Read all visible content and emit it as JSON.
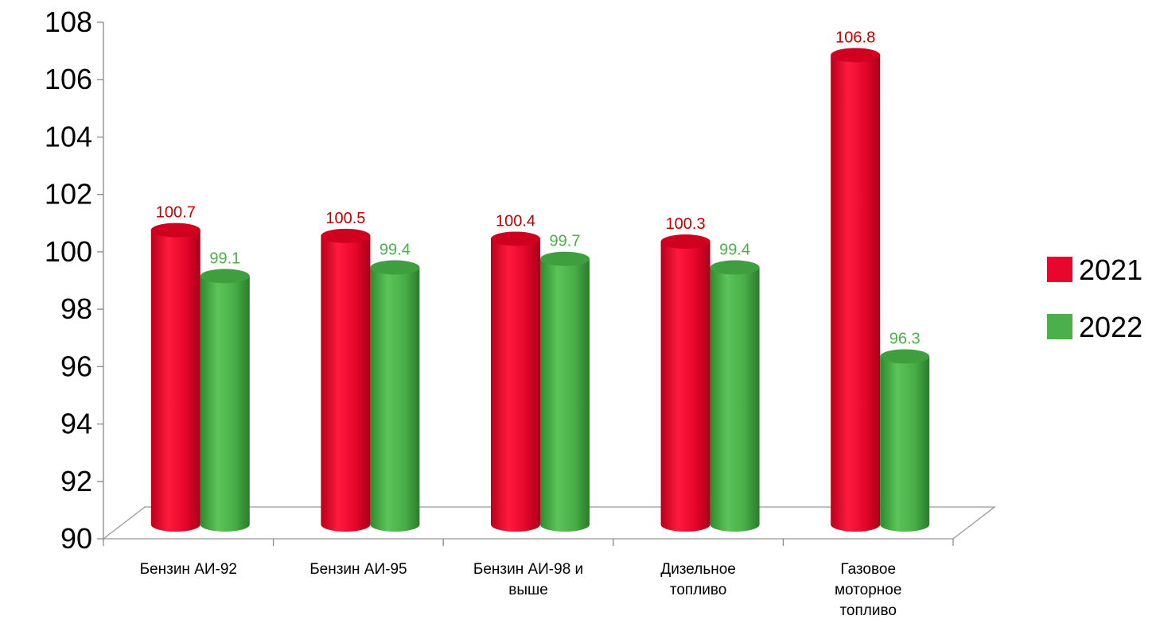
{
  "chart_data": {
    "type": "bar",
    "categories": [
      [
        "Бензин АИ-92"
      ],
      [
        "Бензин АИ-95"
      ],
      [
        "Бензин АИ-98 и",
        "выше"
      ],
      [
        "Дизельное",
        "топливо"
      ],
      [
        "Газовое",
        "моторное",
        "топливо"
      ]
    ],
    "series": [
      {
        "name": "2021",
        "color": "#e8062c",
        "values": [
          100.7,
          100.5,
          100.4,
          100.3,
          106.8
        ]
      },
      {
        "name": "2022",
        "color": "#4bb04a",
        "values": [
          99.1,
          99.4,
          99.7,
          99.4,
          96.3
        ]
      }
    ],
    "yticks": [
      90,
      92,
      94,
      96,
      98,
      100,
      102,
      104,
      106,
      108
    ],
    "ylim": [
      90,
      108
    ],
    "grid": false,
    "legend_position": "right",
    "data_label_colors": {
      "2021": "#c00000",
      "2022": "#4bb04a"
    }
  }
}
